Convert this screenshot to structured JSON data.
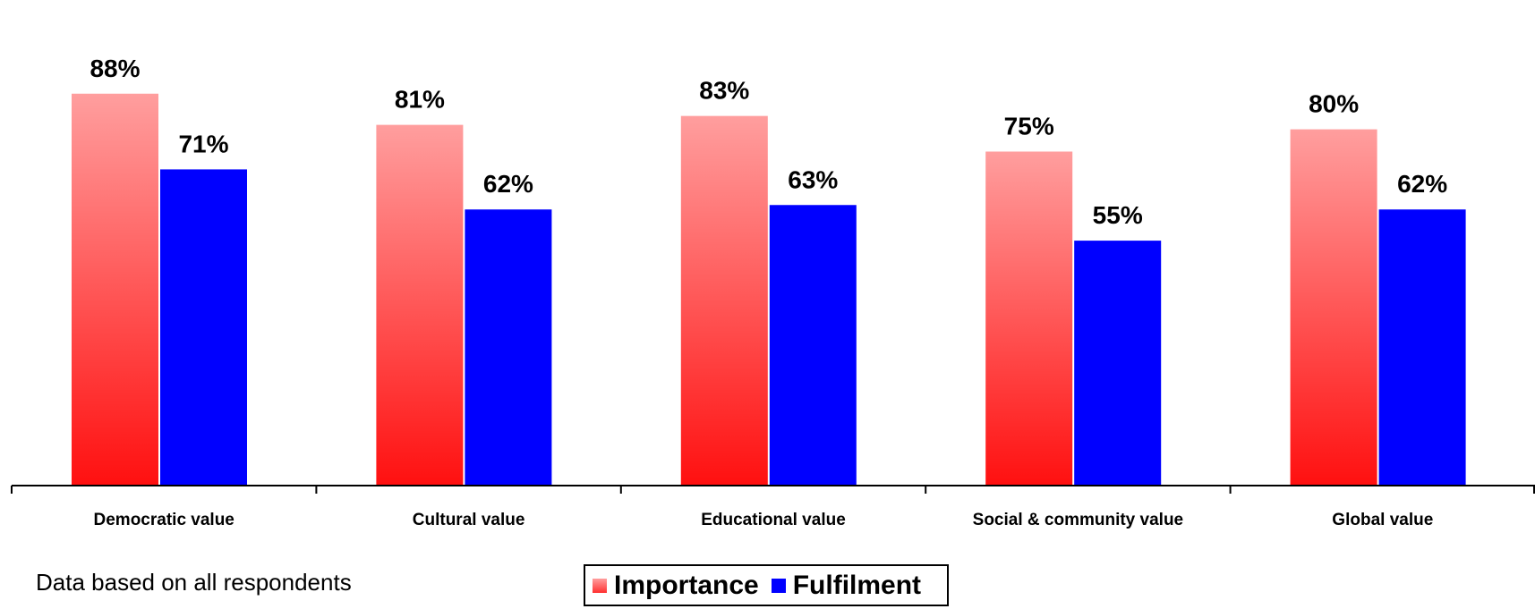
{
  "chart_data": {
    "type": "bar",
    "categories": [
      "Democratic value",
      "Cultural value",
      "Educational value",
      "Social & community value",
      "Global value"
    ],
    "series": [
      {
        "name": "Importance",
        "values": [
          88,
          81,
          83,
          75,
          80
        ],
        "labels": [
          "88%",
          "81%",
          "83%",
          "75%",
          "80%"
        ],
        "color_top": "#ff9e9e",
        "color_bottom": "#ff1010"
      },
      {
        "name": "Fulfilment",
        "values": [
          71,
          62,
          63,
          55,
          62
        ],
        "labels": [
          "71%",
          "62%",
          "63%",
          "55%",
          "62%"
        ],
        "color": "#0000ff"
      }
    ],
    "ylim": [
      0,
      100
    ],
    "grid": false,
    "legend_position": "bottom"
  },
  "legend": {
    "items": [
      "Importance",
      "Fulfilment"
    ]
  },
  "note": "Data based on all respondents"
}
